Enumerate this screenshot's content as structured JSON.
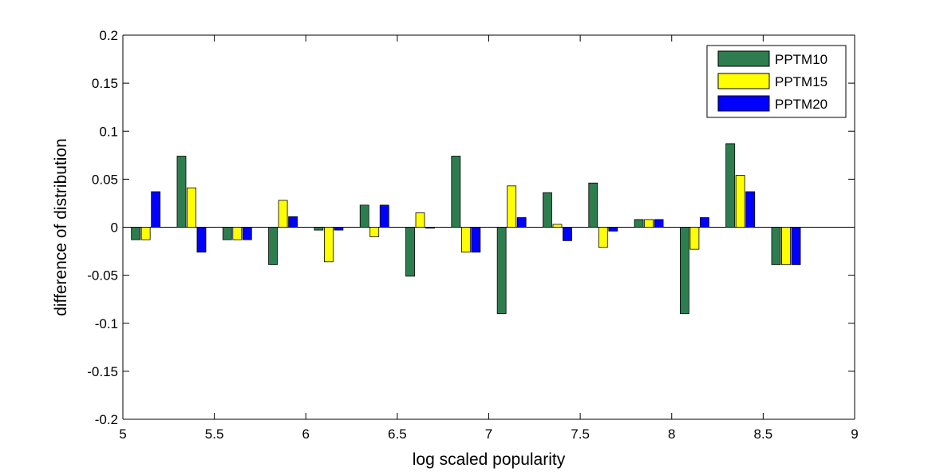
{
  "chart_data": {
    "type": "bar",
    "title": "",
    "xlabel": "log scaled popularity",
    "ylabel": "difference of distribution",
    "xlim": [
      5,
      9
    ],
    "ylim": [
      -0.2,
      0.2
    ],
    "xticks": [
      "5",
      "5.5",
      "6",
      "6.5",
      "7",
      "7.5",
      "8",
      "8.5",
      "9"
    ],
    "xtick_values": [
      5,
      5.5,
      6,
      6.5,
      7,
      7.5,
      8,
      8.5,
      9
    ],
    "yticks": [
      "0.2",
      "0.15",
      "0.1",
      "0.05",
      "0",
      "-0.05",
      "-0.1",
      "-0.15",
      "-0.2"
    ],
    "ytick_values": [
      0.2,
      0.15,
      0.1,
      0.05,
      0,
      -0.05,
      -0.1,
      -0.15,
      -0.2
    ],
    "bin_centers": [
      5.125,
      5.375,
      5.625,
      5.875,
      6.125,
      6.375,
      6.625,
      6.875,
      7.125,
      7.375,
      7.625,
      7.875,
      8.125,
      8.375,
      8.625
    ],
    "series": [
      {
        "name": "PPTM10",
        "color": "#2e7d4f",
        "values": [
          -0.013,
          0.074,
          -0.013,
          -0.039,
          -0.003,
          0.023,
          -0.051,
          0.074,
          -0.09,
          0.036,
          0.046,
          0.008,
          -0.09,
          0.087,
          -0.039
        ]
      },
      {
        "name": "PPTM15",
        "color": "#ffff00",
        "values": [
          -0.013,
          0.041,
          -0.013,
          0.028,
          -0.036,
          -0.01,
          0.015,
          -0.026,
          0.043,
          0.003,
          -0.021,
          0.008,
          -0.023,
          0.054,
          -0.039
        ]
      },
      {
        "name": "PPTM20",
        "color": "#0000ff",
        "values": [
          0.037,
          -0.026,
          -0.013,
          0.011,
          -0.003,
          0.023,
          -0.001,
          -0.026,
          0.01,
          -0.014,
          -0.004,
          0.008,
          0.01,
          0.037,
          -0.039
        ]
      }
    ],
    "legend_position": "top-right",
    "grid": false
  }
}
